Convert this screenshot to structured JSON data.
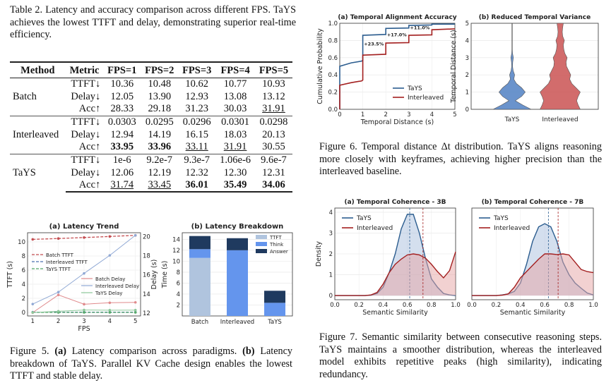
{
  "table2": {
    "caption": "Table 2. Latency and accuracy comparison across different FPS. TaYS achieves the lowest TTFT and delay, demonstrating superior real-time efficiency.",
    "headers": [
      "Method",
      "Metric",
      "FPS=1",
      "FPS=2",
      "FPS=3",
      "FPS=4",
      "FPS=5"
    ],
    "groups": [
      {
        "method": "Batch",
        "rows": [
          {
            "metric": "TTFT↓",
            "values": [
              "10.36",
              "10.48",
              "10.62",
              "10.77",
              "10.93"
            ]
          },
          {
            "metric": "Delay↓",
            "values": [
              "12.05",
              "13.90",
              "12.93",
              "13.08",
              "13.12"
            ]
          },
          {
            "metric": "Acc↑",
            "values": [
              "28.33",
              "29.18",
              "31.23",
              "30.03",
              "31.91"
            ],
            "underline": [
              4
            ]
          }
        ]
      },
      {
        "method": "Interleaved",
        "rows": [
          {
            "metric": "TTFT↓",
            "values": [
              "0.0303",
              "0.0295",
              "0.0296",
              "0.0301",
              "0.0298"
            ]
          },
          {
            "metric": "Delay↓",
            "values": [
              "12.94",
              "14.19",
              "16.15",
              "18.03",
              "20.13"
            ]
          },
          {
            "metric": "Acc↑",
            "values": [
              "33.95",
              "33.96",
              "33.11",
              "31.91",
              "30.55"
            ],
            "bold": [
              0,
              1
            ],
            "underline": [
              2,
              3
            ]
          }
        ]
      },
      {
        "method": "TaYS",
        "rows": [
          {
            "metric": "TTFT↓",
            "values": [
              "1e-6",
              "9.2e-7",
              "9.3e-7",
              "1.06e-6",
              "9.6e-7"
            ]
          },
          {
            "metric": "Delay↓",
            "values": [
              "12.06",
              "12.19",
              "12.32",
              "12.30",
              "12.31"
            ]
          },
          {
            "metric": "Acc↑",
            "values": [
              "31.74",
              "33.45",
              "36.01",
              "35.49",
              "34.06"
            ],
            "bold": [
              2,
              3,
              4
            ],
            "underline": [
              0,
              1
            ]
          }
        ]
      }
    ]
  },
  "fig5": {
    "caption_label": "Figure 5.",
    "caption_a": "(a)",
    "caption_a_text": " Latency comparison across paradigms. ",
    "caption_b": "(b)",
    "caption_b_text": " Latency breakdown of TaYS. Parallel KV Cache design enables the lowest TTFT and stable delay."
  },
  "fig6": {
    "caption": "Figure 6. Temporal distance Δt distribution. TaYS aligns reasoning more closely with keyframes, achieving higher precision than the interleaved baseline."
  },
  "fig7": {
    "caption": "Figure 7.   Semantic similarity between consecutive reasoning steps. TaYS maintains a smoother distribution, whereas the interleaved model exhibits repetitive peaks (high similarity), indicating redundancy."
  },
  "colors": {
    "batch": "#c44e52",
    "interleaved": "#4c72b0",
    "tays": "#55a868",
    "ttft": "#b0c4de",
    "think": "#6495ed",
    "answer": "#1f3a5f",
    "cdf_tays": "#2c5d8f",
    "cdf_inter": "#a31f1f",
    "violin_tays": "#5a87c6",
    "violin_inter": "#cd5c5c"
  },
  "chart_data": [
    {
      "id": "5a",
      "type": "line",
      "title": "(a) Latency Trend",
      "xlabel": "FPS",
      "ylabel": "TTFT (s)",
      "y2label": "Delay (s)",
      "x": [
        1,
        2,
        3,
        4,
        5
      ],
      "ylim": [
        -0.5,
        11.3
      ],
      "y2lim": [
        11.7,
        20.4
      ],
      "xticks": [
        1,
        2,
        3,
        4,
        5
      ],
      "yticks": [
        0,
        2,
        4,
        6,
        8,
        10
      ],
      "y2ticks": [
        12,
        14,
        16,
        18,
        20
      ],
      "series": [
        {
          "name": "Batch TTFT",
          "axis": "left",
          "style": "dashed",
          "color": "#c44e52",
          "values": [
            10.36,
            10.48,
            10.62,
            10.77,
            10.93
          ]
        },
        {
          "name": "Interleaved TTFT",
          "axis": "left",
          "style": "dashed",
          "color": "#4c72b0",
          "values": [
            0.0303,
            0.0295,
            0.0296,
            0.0301,
            0.0298
          ]
        },
        {
          "name": "TaYS TTFT",
          "axis": "left",
          "style": "dashed",
          "color": "#55a868",
          "values": [
            1e-06,
            9.2e-07,
            9.3e-07,
            1.06e-06,
            9.6e-07
          ]
        },
        {
          "name": "Batch Delay",
          "axis": "right",
          "style": "solid",
          "color": "#e08a8c",
          "values": [
            12.05,
            13.9,
            12.93,
            13.08,
            13.12
          ]
        },
        {
          "name": "Interleaved Delay",
          "axis": "right",
          "style": "solid",
          "color": "#8fa8d4",
          "values": [
            12.94,
            14.19,
            16.15,
            18.03,
            20.13
          ]
        },
        {
          "name": "TaYS Delay",
          "axis": "right",
          "style": "solid",
          "color": "#8cc79a",
          "values": [
            12.06,
            12.19,
            12.32,
            12.3,
            12.31
          ]
        }
      ]
    },
    {
      "id": "5b",
      "type": "bar",
      "stacked": true,
      "title": "(b) Latency Breakdown",
      "ylabel": "Time (s)",
      "categories": [
        "Batch",
        "Interleaved",
        "TaYS"
      ],
      "ylim": [
        0,
        15.2
      ],
      "yticks": [
        2,
        4,
        6,
        8,
        10,
        12,
        14
      ],
      "series": [
        {
          "name": "TTFT",
          "values": [
            10.6,
            0,
            0
          ]
        },
        {
          "name": "Think",
          "values": [
            1.6,
            12.0,
            2.4
          ]
        },
        {
          "name": "Answer",
          "values": [
            2.4,
            2.2,
            2.2
          ]
        }
      ]
    },
    {
      "id": "6a",
      "type": "line",
      "title": "(a) Temporal Alignment Accuracy",
      "xlabel": "Temporal Distance (s)",
      "ylabel": "Cumulative Probability",
      "xlim": [
        0,
        5
      ],
      "ylim": [
        0,
        1
      ],
      "xticks": [
        0,
        1,
        2,
        3,
        4,
        5
      ],
      "yticks": [
        0,
        0.2,
        0.4,
        0.6,
        0.8,
        1.0
      ],
      "series": [
        {
          "name": "TaYS",
          "x": [
            0,
            0,
            0.5,
            0.95,
            1,
            1,
            2,
            2,
            3,
            3,
            4,
            4,
            5
          ],
          "values": [
            0,
            0.5,
            0.54,
            0.56,
            0.57,
            0.86,
            0.87,
            0.94,
            0.945,
            0.975,
            0.98,
            0.99,
            0.99
          ]
        },
        {
          "name": "Interleaved",
          "x": [
            0,
            0,
            0.5,
            0.95,
            1,
            1,
            2,
            2,
            3,
            3,
            4,
            4,
            5
          ],
          "values": [
            0,
            0.28,
            0.31,
            0.33,
            0.34,
            0.63,
            0.64,
            0.77,
            0.775,
            0.86,
            0.865,
            0.925,
            0.935
          ]
        }
      ],
      "annotations": [
        {
          "text": "+23.5%",
          "x": 1.05,
          "y": 0.74
        },
        {
          "text": "+17.0%",
          "x": 2.05,
          "y": 0.85
        },
        {
          "text": "+11.0%",
          "x": 3.05,
          "y": 0.93
        }
      ]
    },
    {
      "id": "6b",
      "type": "violin",
      "title": "(b) Reduced Temporal Variance",
      "ylabel": "Temporal Distance (s)",
      "categories": [
        "TaYS",
        "Interleaved"
      ],
      "ylim": [
        0,
        5
      ],
      "yticks": [
        0,
        1,
        2,
        3,
        4,
        5
      ],
      "y": [
        0,
        0.25,
        0.5,
        0.75,
        1,
        1.25,
        1.5,
        1.75,
        2,
        2.25,
        2.5,
        2.75,
        3,
        3.25,
        3.5,
        3.75,
        4,
        4.25,
        4.5,
        4.75,
        5
      ],
      "series": [
        {
          "name": "TaYS",
          "density": [
            0.9,
            0.5,
            0.15,
            0.45,
            0.62,
            0.45,
            0.2,
            0.08,
            0.12,
            0.05,
            0.02,
            0.03,
            0.06,
            0.02,
            0.01,
            0.01,
            0.01,
            0.01,
            0.01,
            0.01,
            0.01
          ]
        },
        {
          "name": "Interleaved",
          "density": [
            0.95,
            0.85,
            0.78,
            0.85,
            0.95,
            0.75,
            0.55,
            0.45,
            0.5,
            0.4,
            0.3,
            0.28,
            0.33,
            0.22,
            0.17,
            0.15,
            0.2,
            0.12,
            0.1,
            0.12,
            0.15
          ]
        }
      ]
    },
    {
      "id": "7a",
      "type": "area",
      "title": "(a) Temporal Coherence - 3B",
      "xlabel": "Semantic Similarity",
      "ylabel": "Density",
      "xlim": [
        0,
        1
      ],
      "ylim": [
        -0.2,
        4.2
      ],
      "xticks": [
        0,
        0.2,
        0.4,
        0.6,
        0.8,
        1.0
      ],
      "yticks": [
        0,
        1,
        2,
        3,
        4
      ],
      "x": [
        0,
        0.05,
        0.1,
        0.15,
        0.2,
        0.25,
        0.3,
        0.35,
        0.4,
        0.45,
        0.5,
        0.55,
        0.6,
        0.65,
        0.7,
        0.75,
        0.8,
        0.85,
        0.9,
        0.95,
        1.0
      ],
      "series": [
        {
          "name": "TaYS",
          "mean": 0.62,
          "values": [
            0,
            0,
            0,
            0,
            0,
            0,
            0.02,
            0.1,
            0.4,
            1.1,
            2.0,
            3.2,
            3.9,
            3.9,
            3.0,
            1.8,
            0.8,
            0.4,
            0.1,
            0.03,
            0
          ]
        },
        {
          "name": "Interleaved",
          "mean": 0.73,
          "values": [
            0,
            0,
            0,
            0,
            0,
            0,
            0.03,
            0.15,
            0.55,
            1.1,
            1.5,
            1.75,
            1.95,
            2.0,
            1.95,
            1.8,
            1.5,
            1.15,
            0.85,
            1.2,
            2.1
          ]
        }
      ]
    },
    {
      "id": "7b",
      "type": "area",
      "title": "(b) Temporal Coherence - 7B",
      "xlabel": "Semantic Similarity",
      "xlim": [
        0,
        1
      ],
      "ylim": [
        -0.2,
        4.2
      ],
      "xticks": [
        0,
        0.2,
        0.4,
        0.6,
        0.8,
        1.0
      ],
      "x": [
        0,
        0.05,
        0.1,
        0.15,
        0.2,
        0.25,
        0.3,
        0.35,
        0.4,
        0.45,
        0.5,
        0.55,
        0.6,
        0.65,
        0.7,
        0.75,
        0.8,
        0.85,
        0.9,
        0.95,
        1.0
      ],
      "series": [
        {
          "name": "TaYS",
          "mean": 0.63,
          "values": [
            0,
            0,
            0,
            0,
            0,
            0.03,
            0.08,
            0.2,
            0.6,
            1.5,
            2.6,
            3.3,
            3.45,
            3.3,
            2.6,
            1.6,
            1.0,
            0.6,
            0.35,
            0.12,
            0.03
          ]
        },
        {
          "name": "Interleaved",
          "mean": 0.71,
          "values": [
            0,
            0,
            0,
            0,
            0,
            0.02,
            0.08,
            0.4,
            0.85,
            1.15,
            1.45,
            1.75,
            2.0,
            2.0,
            1.97,
            2.0,
            1.95,
            1.6,
            1.25,
            1.15,
            1.1
          ]
        }
      ]
    }
  ]
}
